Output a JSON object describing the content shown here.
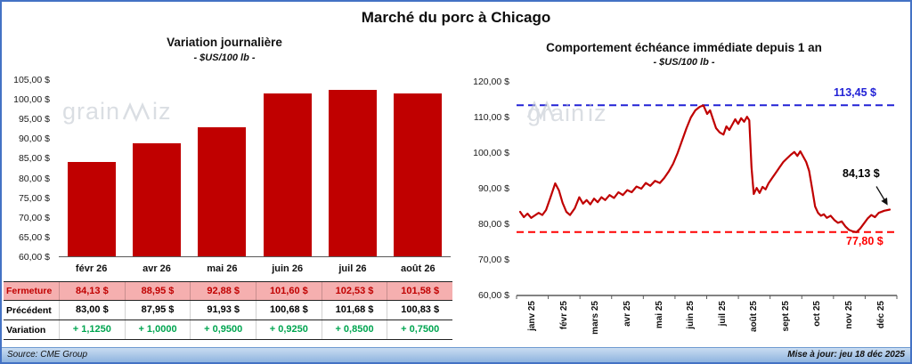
{
  "page": {
    "title": "Marché du porc à Chicago",
    "watermark": {
      "pre": "grain",
      "post": "iz"
    },
    "footer": {
      "source": "Source: CME Group",
      "updated": "Mise à jour: jeu 18 déc 2025"
    }
  },
  "colors": {
    "bar": "#C00000",
    "price_line": "#C00000",
    "max_line_blue": "#2222D6",
    "min_line_red": "#FF0000",
    "fermeture_bg": "#F5AFAF",
    "fermeture_text": "#C00000",
    "variation_green": "#00A550",
    "frame_blue": "#4472C4"
  },
  "chart_data": [
    {
      "type": "bar",
      "title": "Variation  journalière",
      "subtitle": "- $US/100 lb -",
      "categories": [
        "févr 26",
        "avr 26",
        "mai 26",
        "juin 26",
        "juil 26",
        "août 26"
      ],
      "values": [
        84.13,
        88.95,
        92.88,
        101.6,
        102.53,
        101.58
      ],
      "bar_color": "#C00000",
      "ylim": [
        60,
        105
      ],
      "ytick_labels": [
        "105,00 $",
        "100,00 $",
        "95,00 $",
        "90,00 $",
        "85,00 $",
        "80,00 $",
        "75,00 $",
        "70,00 $",
        "65,00 $",
        "60,00 $"
      ]
    },
    {
      "type": "line",
      "title": "Comportement  échéance  immédiate  depuis 1 an",
      "subtitle": "- $US/100 lb -",
      "x_labels": [
        "janv 25",
        "févr 25",
        "mars 25",
        "avr 25",
        "mai 25",
        "juin 25",
        "juil 25",
        "août 25",
        "sept 25",
        "oct 25",
        "nov 25",
        "déc 25"
      ],
      "ylim": [
        60,
        120
      ],
      "ytick_labels": [
        "120,00 $",
        "110,00 $",
        "100,00 $",
        "90,00 $",
        "80,00 $",
        "70,00 $",
        "60,00 $"
      ],
      "line_color": "#C00000",
      "max_line": {
        "value": 113.45,
        "label": "113,45 $",
        "color": "#2222D6"
      },
      "min_line": {
        "value": 77.8,
        "label": "77,80 $",
        "color": "#FF0000"
      },
      "annotation": {
        "label": "84,13 $",
        "value": 84.13,
        "color": "#000000"
      },
      "points": [
        [
          0.0,
          83.5
        ],
        [
          0.01,
          82.0
        ],
        [
          0.02,
          83.0
        ],
        [
          0.03,
          81.8
        ],
        [
          0.04,
          82.5
        ],
        [
          0.05,
          83.2
        ],
        [
          0.06,
          82.6
        ],
        [
          0.07,
          84.0
        ],
        [
          0.082,
          87.5
        ],
        [
          0.095,
          91.5
        ],
        [
          0.105,
          89.5
        ],
        [
          0.115,
          86.0
        ],
        [
          0.125,
          83.5
        ],
        [
          0.135,
          82.6
        ],
        [
          0.148,
          84.5
        ],
        [
          0.16,
          87.6
        ],
        [
          0.17,
          85.8
        ],
        [
          0.18,
          86.8
        ],
        [
          0.19,
          85.6
        ],
        [
          0.2,
          87.2
        ],
        [
          0.21,
          86.2
        ],
        [
          0.22,
          87.6
        ],
        [
          0.23,
          86.8
        ],
        [
          0.242,
          88.2
        ],
        [
          0.254,
          87.4
        ],
        [
          0.266,
          89.0
        ],
        [
          0.278,
          88.2
        ],
        [
          0.29,
          89.6
        ],
        [
          0.302,
          89.0
        ],
        [
          0.315,
          90.6
        ],
        [
          0.328,
          90.0
        ],
        [
          0.34,
          91.6
        ],
        [
          0.352,
          90.8
        ],
        [
          0.365,
          92.2
        ],
        [
          0.378,
          91.6
        ],
        [
          0.39,
          93.0
        ],
        [
          0.402,
          94.8
        ],
        [
          0.414,
          97.0
        ],
        [
          0.426,
          100.0
        ],
        [
          0.438,
          103.5
        ],
        [
          0.45,
          107.0
        ],
        [
          0.462,
          110.0
        ],
        [
          0.474,
          112.0
        ],
        [
          0.486,
          113.0
        ],
        [
          0.496,
          113.4
        ],
        [
          0.506,
          111.0
        ],
        [
          0.514,
          112.0
        ],
        [
          0.522,
          109.5
        ],
        [
          0.53,
          107.0
        ],
        [
          0.54,
          105.8
        ],
        [
          0.55,
          105.2
        ],
        [
          0.558,
          107.5
        ],
        [
          0.566,
          106.5
        ],
        [
          0.574,
          108.0
        ],
        [
          0.582,
          109.5
        ],
        [
          0.59,
          108.2
        ],
        [
          0.598,
          109.8
        ],
        [
          0.606,
          108.8
        ],
        [
          0.614,
          110.2
        ],
        [
          0.62,
          109.2
        ],
        [
          0.626,
          96.0
        ],
        [
          0.632,
          88.5
        ],
        [
          0.64,
          90.2
        ],
        [
          0.648,
          88.8
        ],
        [
          0.656,
          90.5
        ],
        [
          0.664,
          89.8
        ],
        [
          0.672,
          91.5
        ],
        [
          0.682,
          93.0
        ],
        [
          0.692,
          94.5
        ],
        [
          0.702,
          96.0
        ],
        [
          0.712,
          97.5
        ],
        [
          0.722,
          98.5
        ],
        [
          0.732,
          99.5
        ],
        [
          0.742,
          100.3
        ],
        [
          0.75,
          99.2
        ],
        [
          0.758,
          100.5
        ],
        [
          0.766,
          99.0
        ],
        [
          0.774,
          97.5
        ],
        [
          0.782,
          95.0
        ],
        [
          0.79,
          90.0
        ],
        [
          0.798,
          85.0
        ],
        [
          0.806,
          83.2
        ],
        [
          0.814,
          82.4
        ],
        [
          0.822,
          82.8
        ],
        [
          0.83,
          81.8
        ],
        [
          0.84,
          82.4
        ],
        [
          0.85,
          81.2
        ],
        [
          0.86,
          80.4
        ],
        [
          0.87,
          80.8
        ],
        [
          0.88,
          79.4
        ],
        [
          0.89,
          78.4
        ],
        [
          0.9,
          78.0
        ],
        [
          0.91,
          77.8
        ],
        [
          0.92,
          78.8
        ],
        [
          0.93,
          80.2
        ],
        [
          0.94,
          81.6
        ],
        [
          0.95,
          82.6
        ],
        [
          0.96,
          82.0
        ],
        [
          0.97,
          83.2
        ],
        [
          0.985,
          83.8
        ],
        [
          1.0,
          84.13
        ]
      ]
    }
  ],
  "table": {
    "rows": [
      {
        "name": "fermeture",
        "label": "Fermeture",
        "text_color": "#C00000",
        "bg": "#F5AFAF",
        "values": [
          "84,13  $",
          "88,95  $",
          "92,88  $",
          "101,60  $",
          "102,53  $",
          "101,58  $"
        ]
      },
      {
        "name": "precedent",
        "label": "Précédent",
        "text_color": "#000000",
        "bg": "#FFFFFF",
        "values": [
          "83,00  $",
          "87,95  $",
          "91,93  $",
          "100,68  $",
          "101,68  $",
          "100,83  $"
        ]
      },
      {
        "name": "variation",
        "label": "Variation",
        "text_color": "#00A550",
        "bg": "#FFFFFF",
        "values": [
          "+ 1,1250",
          "+ 1,0000",
          "+ 0,9500",
          "+ 0,9250",
          "+ 0,8500",
          "+ 0,7500"
        ]
      }
    ]
  }
}
